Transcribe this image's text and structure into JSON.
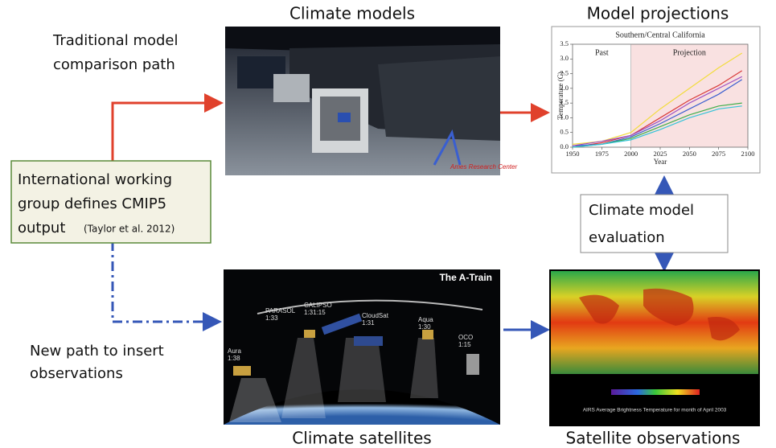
{
  "titles": {
    "climate_models": "Climate models",
    "model_projections": "Model projections",
    "climate_satellites": "Climate satellites",
    "satellite_observations": "Satellite observations"
  },
  "traditional_path": [
    "Traditional model",
    "comparison path"
  ],
  "new_path": [
    "New path to insert",
    "observations"
  ],
  "cmip_box": [
    "International working",
    "group defines CMIP5",
    "output",
    "(Taylor et al. 2012)"
  ],
  "evaluation_box": [
    "Climate model",
    "evaluation"
  ],
  "photo_caption": "Ames Research Center",
  "a_train": {
    "title": "The A-Train",
    "satellites": [
      [
        "Aura",
        "1:38"
      ],
      [
        "PARASOL",
        "1:33"
      ],
      [
        "CALIPSO",
        "1:31:15"
      ],
      [
        "CloudSat",
        "1:31"
      ],
      [
        "Aqua",
        "1:30"
      ],
      [
        "OCO",
        "1:15"
      ]
    ]
  },
  "map_caption": "AIRS Average Brightness Temperature for month of April 2003",
  "projection_chart": {
    "type": "line",
    "title": "Southern/Central California",
    "regions": [
      "Past",
      "Projection"
    ],
    "shade_from": 2000,
    "x_label": "Year",
    "y_label": "Temperature (C)",
    "xlim": [
      1950,
      2100
    ],
    "ylim": [
      0,
      3.5
    ],
    "xticks": [
      1950,
      1975,
      2000,
      2025,
      2050,
      2075,
      2100
    ],
    "yticks": [
      {
        "value": 0,
        "label": "0.0"
      },
      {
        "value": 0.5,
        "label": "0.5"
      },
      {
        "value": 1,
        "label": "1.0"
      },
      {
        "value": 1.5,
        "label": "1.5"
      },
      {
        "value": 2,
        "label": "2.0"
      },
      {
        "value": 2.5,
        "label": "2.5"
      },
      {
        "value": 3,
        "label": "3.0"
      },
      {
        "value": 3.5,
        "label": "3.5"
      }
    ],
    "x": [
      1950,
      1975,
      2000,
      2025,
      2050,
      2075,
      2095
    ],
    "series": [
      {
        "color": "#f2dc3c",
        "values": [
          0.1,
          0.2,
          0.5,
          1.3,
          2.0,
          2.7,
          3.2
        ]
      },
      {
        "color": "#d83a3a",
        "values": [
          0.0,
          0.15,
          0.4,
          1.0,
          1.6,
          2.1,
          2.6
        ]
      },
      {
        "color": "#3b5fd0",
        "values": [
          0.05,
          0.1,
          0.35,
          0.8,
          1.3,
          1.8,
          2.3
        ]
      },
      {
        "color": "#3fae4a",
        "values": [
          0.0,
          0.1,
          0.3,
          0.7,
          1.1,
          1.4,
          1.5
        ]
      },
      {
        "color": "#9b4fc2",
        "values": [
          0.05,
          0.2,
          0.4,
          0.9,
          1.5,
          2.0,
          2.4
        ]
      },
      {
        "color": "#35c3d8",
        "values": [
          0.0,
          0.1,
          0.25,
          0.6,
          1.0,
          1.3,
          1.4
        ]
      }
    ]
  }
}
